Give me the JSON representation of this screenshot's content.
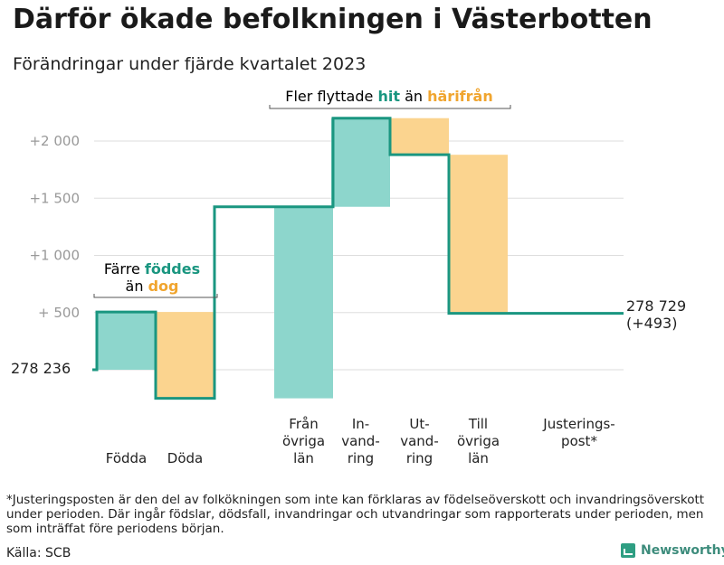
{
  "title": "Därför ökade befolkningen i Västerbotten",
  "subtitle": "Förändringar under fjärde kvartalet 2023",
  "colors": {
    "positive": "#8dd6cc",
    "negative": "#fbd48f",
    "line": "#1a9680",
    "grid": "#dddddd",
    "tick": "#999999",
    "accent_green": "#1a9680",
    "accent_orange": "#f0a52f"
  },
  "chart_data": {
    "type": "waterfall",
    "baseline_label": "278 236",
    "baseline_value": 278236,
    "end_label_line1": "278 729",
    "end_label_line2": "(+493)",
    "ylim": [
      -250,
      2200
    ],
    "yticks": [
      {
        "value": 500,
        "label": "+ 500"
      },
      {
        "value": 1000,
        "label": "+1 000"
      },
      {
        "value": 1500,
        "label": "+1 500"
      },
      {
        "value": 2000,
        "label": "+2 000"
      }
    ],
    "steps": [
      {
        "name": "Födda",
        "label_lines": [
          "Födda"
        ],
        "change": 505,
        "sign": "positive"
      },
      {
        "name": "Döda",
        "label_lines": [
          "Döda"
        ],
        "change": -755,
        "sign": "negative"
      },
      {
        "name": "Från övriga län",
        "label_lines": [
          "Från",
          "övriga",
          "län"
        ],
        "change": 1675,
        "sign": "positive"
      },
      {
        "name": "Invandring",
        "label_lines": [
          "In-",
          "vand-",
          "ring"
        ],
        "change": 775,
        "sign": "positive"
      },
      {
        "name": "Utvandring",
        "label_lines": [
          "Ut-",
          "vand-",
          "ring"
        ],
        "change": -320,
        "sign": "negative"
      },
      {
        "name": "Till övriga län",
        "label_lines": [
          "Till",
          "övriga",
          "län"
        ],
        "change": -1387,
        "sign": "negative"
      },
      {
        "name": "Justeringspost*",
        "label_lines": [
          "Justerings-",
          "post*"
        ],
        "change": 0,
        "sign": "flat"
      }
    ],
    "annotations": [
      {
        "id": "births",
        "line1_prefix": "Färre",
        "line1_highlight": "föddes",
        "line2_prefix": "än",
        "line2_highlight": "dog",
        "from_step": 0,
        "to_step": 1
      },
      {
        "id": "migration",
        "prefix": "Fler flyttade",
        "highlight1": "hit",
        "middle": "än",
        "highlight2": "härifrån",
        "from_step": 2,
        "to_step": 5
      }
    ]
  },
  "footnote": "*Justeringsposten är den del av folkökningen som inte kan förklaras av födelseöverskott och invandringsöverskott under perioden. Där ingår födslar, dödsfall, invandringar och utvandringar som rapporterats under perioden, men som inträffat före periodens början.",
  "source": "Källa: SCB",
  "brand": "Newsworthy"
}
